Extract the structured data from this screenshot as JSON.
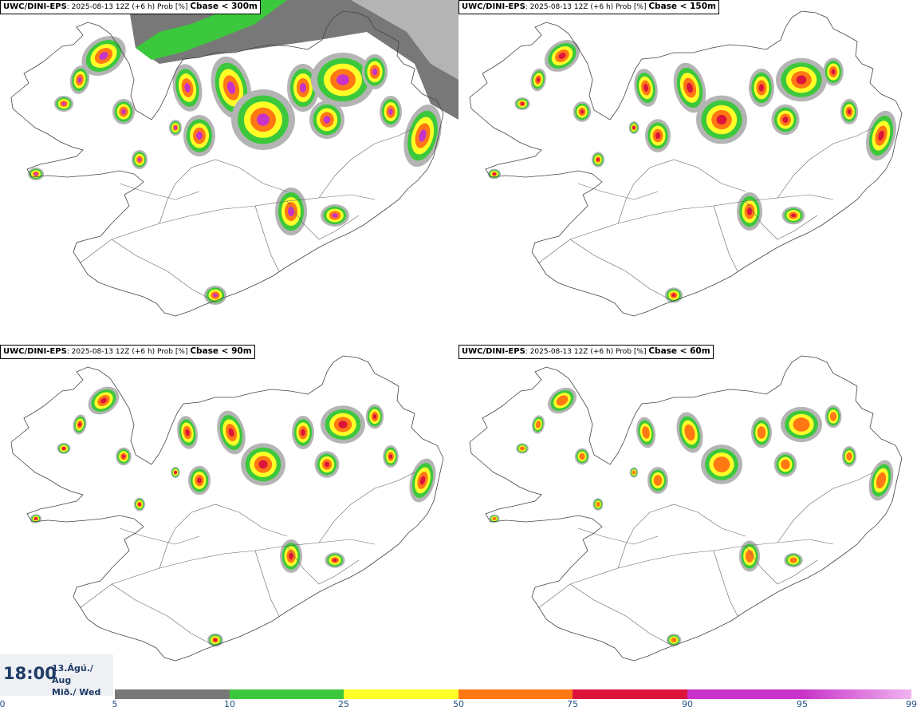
{
  "panels": [
    {
      "model": "UWC/DINI-EPS",
      "run": "2025-08-13 12Z (+6 h) Prob [%]",
      "variable": "Cbase < 300m"
    },
    {
      "model": "UWC/DINI-EPS",
      "run": "2025-08-13 12Z (+6 h) Prob [%]",
      "variable": "Cbase < 150m"
    },
    {
      "model": "UWC/DINI-EPS",
      "run": "2025-08-13 12Z (+6 h) Prob [%]",
      "variable": "Cbase < 90m"
    },
    {
      "model": "UWC/DINI-EPS",
      "run": "2025-08-13 12Z (+6 h) Prob [%]",
      "variable": "Cbase < 60m"
    }
  ],
  "valid_time": {
    "time": "18:00",
    "date_line1": "13.Ágú./ Aug",
    "date_line2": "Mið./ Wed"
  },
  "colorbar": {
    "labels": [
      "0",
      "5",
      "10",
      "25",
      "50",
      "75",
      "90",
      "95",
      "99"
    ],
    "colors": [
      "#ffffff",
      "#b4b4b4",
      "#787878",
      "#3cc83c",
      "#ffff28",
      "#ff7814",
      "#dc143c",
      "#c832c8",
      "#f0b4f0"
    ]
  }
}
